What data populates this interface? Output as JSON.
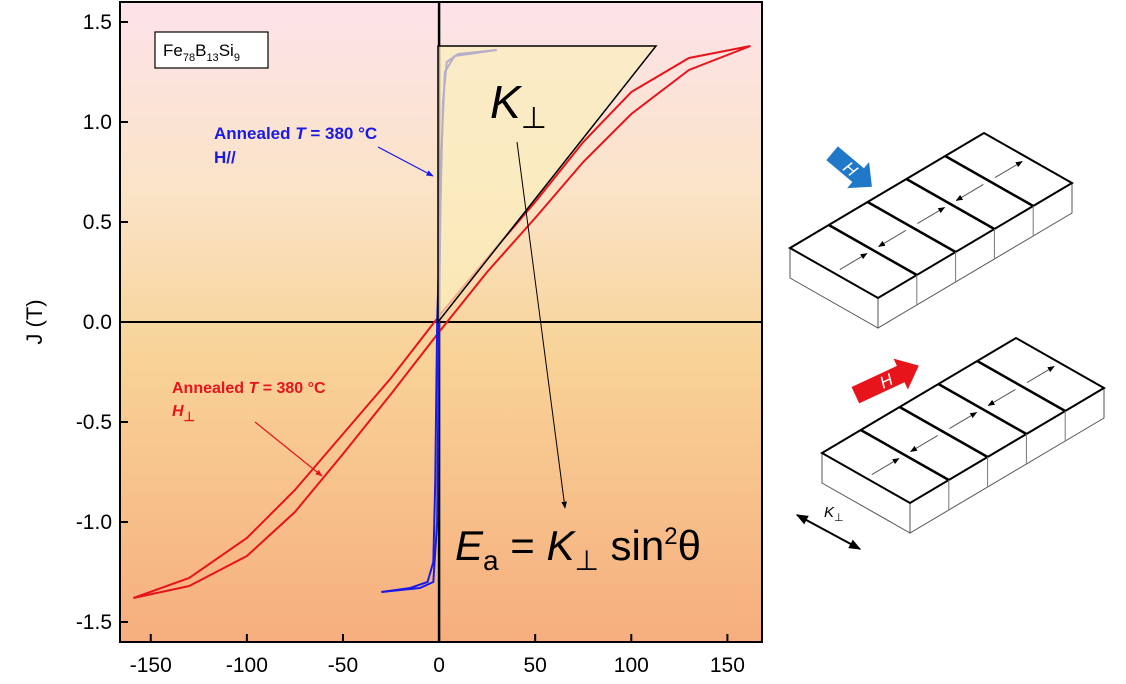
{
  "chart_data": {
    "type": "line",
    "ylabel": "J (T)",
    "xlim": [
      -166,
      168
    ],
    "ylim": [
      -1.6,
      1.6
    ],
    "xticks": [
      -150,
      -100,
      -50,
      0,
      50,
      100,
      150
    ],
    "yticks": [
      -1.5,
      {
        "value": -1.0,
        "label": "-1.0"
      },
      -0.5,
      {
        "value": 0.0,
        "label": "0.0"
      },
      0.5,
      {
        "value": 1.0,
        "label": "1.0"
      },
      1.5
    ],
    "series": [
      {
        "color": "#e8141c",
        "x": [
          162,
          130,
          100,
          75,
          50,
          25,
          0,
          -25,
          -50,
          -75,
          -100,
          -130,
          -159
        ],
        "values": [
          1.38,
          1.32,
          1.15,
          0.9,
          0.6,
          0.32,
          0.03,
          -0.28,
          -0.56,
          -0.84,
          -1.08,
          -1.28,
          -1.38
        ]
      },
      {
        "color": "#e8141c",
        "x": [
          -159,
          -130,
          -100,
          -75,
          -50,
          -25,
          0,
          25,
          50,
          75,
          100,
          130,
          162
        ],
        "values": [
          -1.38,
          -1.32,
          -1.17,
          -0.95,
          -0.66,
          -0.36,
          -0.05,
          0.25,
          0.52,
          0.8,
          1.04,
          1.26,
          1.38
        ]
      },
      {
        "color": "#1a1ae6",
        "x": [
          30,
          10,
          4,
          2,
          0.5,
          -1,
          -2,
          -3,
          -6,
          -15,
          -30
        ],
        "values": [
          1.36,
          1.34,
          1.3,
          1.1,
          0.5,
          0,
          -0.8,
          -1.2,
          -1.3,
          -1.33,
          -1.35
        ]
      },
      {
        "color": "#1a1ae6",
        "x": [
          -30,
          -10,
          -3,
          -1,
          0,
          1,
          3,
          8,
          30
        ],
        "values": [
          -1.35,
          -1.33,
          -1.3,
          -1.0,
          0,
          0.8,
          1.25,
          1.33,
          1.36
        ]
      }
    ],
    "annotations": {
      "sample": [
        "Fe",
        "78",
        "B",
        "13",
        "Si",
        "9"
      ],
      "blue_label": [
        "Annealed ",
        "T",
        " = 380 °C"
      ],
      "blue_field": "H//",
      "red_label": [
        "Annealed ",
        "T",
        " = 380 °C"
      ],
      "red_field": [
        "H",
        "⊥"
      ],
      "anisotropy": [
        "K",
        "⊥"
      ],
      "energy": [
        "E",
        "a",
        " = ",
        "K",
        "⊥",
        " sin",
        "2",
        "θ"
      ]
    }
  },
  "diagram": {
    "field_label_1": "H",
    "field_label_2": "H",
    "anisotropy_axis": [
      "K",
      "⊥"
    ]
  }
}
